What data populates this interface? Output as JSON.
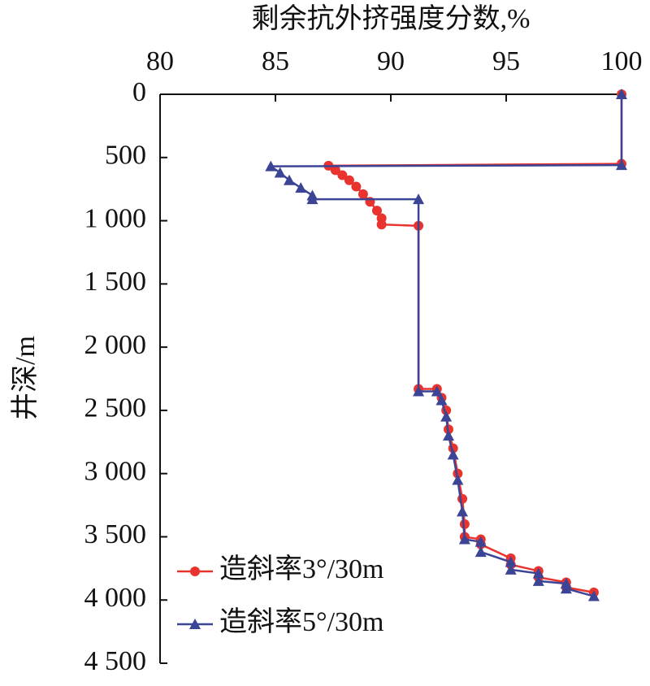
{
  "chart_data": {
    "type": "line",
    "title": "剩余抗外挤强度分数,%",
    "y_label": "井深/m",
    "xlim": [
      80,
      100
    ],
    "xticks": [
      80,
      85,
      90,
      95,
      100
    ],
    "ylim": [
      0,
      4500
    ],
    "y_inverted": true,
    "yticks": [
      0,
      500,
      {
        "value": 1000,
        "label": "1 000"
      },
      {
        "value": 1500,
        "label": "1 500"
      },
      {
        "value": 2000,
        "label": "2 000"
      },
      {
        "value": 2500,
        "label": "2 500"
      },
      {
        "value": 3000,
        "label": "3 000"
      },
      {
        "value": 3500,
        "label": "3 500"
      },
      {
        "value": 4000,
        "label": "4 000"
      },
      {
        "value": 4500,
        "label": "4 500"
      }
    ],
    "legend": "lower left",
    "series": [
      {
        "name": "造斜率3°/30m",
        "color": "#e8332e",
        "marker": "circle",
        "x": [
          100,
          100,
          87.3,
          87.6,
          87.9,
          88.2,
          88.5,
          88.8,
          89.1,
          89.4,
          89.6,
          89.6,
          91.2,
          91.2,
          92.0,
          92.2,
          92.4,
          92.5,
          92.7,
          92.9,
          93.1,
          93.2,
          93.2,
          93.9,
          93.9,
          95.2,
          95.2,
          96.4,
          96.4,
          97.6,
          97.6,
          98.8
        ],
        "values": [
          0,
          550,
          565,
          600,
          640,
          680,
          730,
          790,
          850,
          920,
          980,
          1030,
          1040,
          2330,
          2330,
          2400,
          2500,
          2650,
          2800,
          3000,
          3200,
          3400,
          3500,
          3520,
          3560,
          3670,
          3720,
          3770,
          3820,
          3860,
          3900,
          3940
        ]
      },
      {
        "name": "造斜率5°/30m",
        "color": "#3c4496",
        "marker": "triangle",
        "x": [
          100,
          100,
          84.8,
          85.2,
          85.6,
          86.1,
          86.6,
          86.6,
          91.2,
          91.2,
          92.0,
          92.2,
          92.4,
          92.5,
          92.7,
          92.9,
          93.1,
          93.2,
          93.9,
          93.9,
          95.2,
          95.2,
          96.4,
          96.4,
          97.6,
          97.6,
          98.8
        ],
        "values": [
          0,
          560,
          570,
          620,
          680,
          740,
          800,
          830,
          830,
          2350,
          2350,
          2420,
          2550,
          2700,
          2850,
          3050,
          3300,
          3520,
          3540,
          3620,
          3700,
          3760,
          3790,
          3850,
          3870,
          3910,
          3970
        ]
      }
    ]
  }
}
